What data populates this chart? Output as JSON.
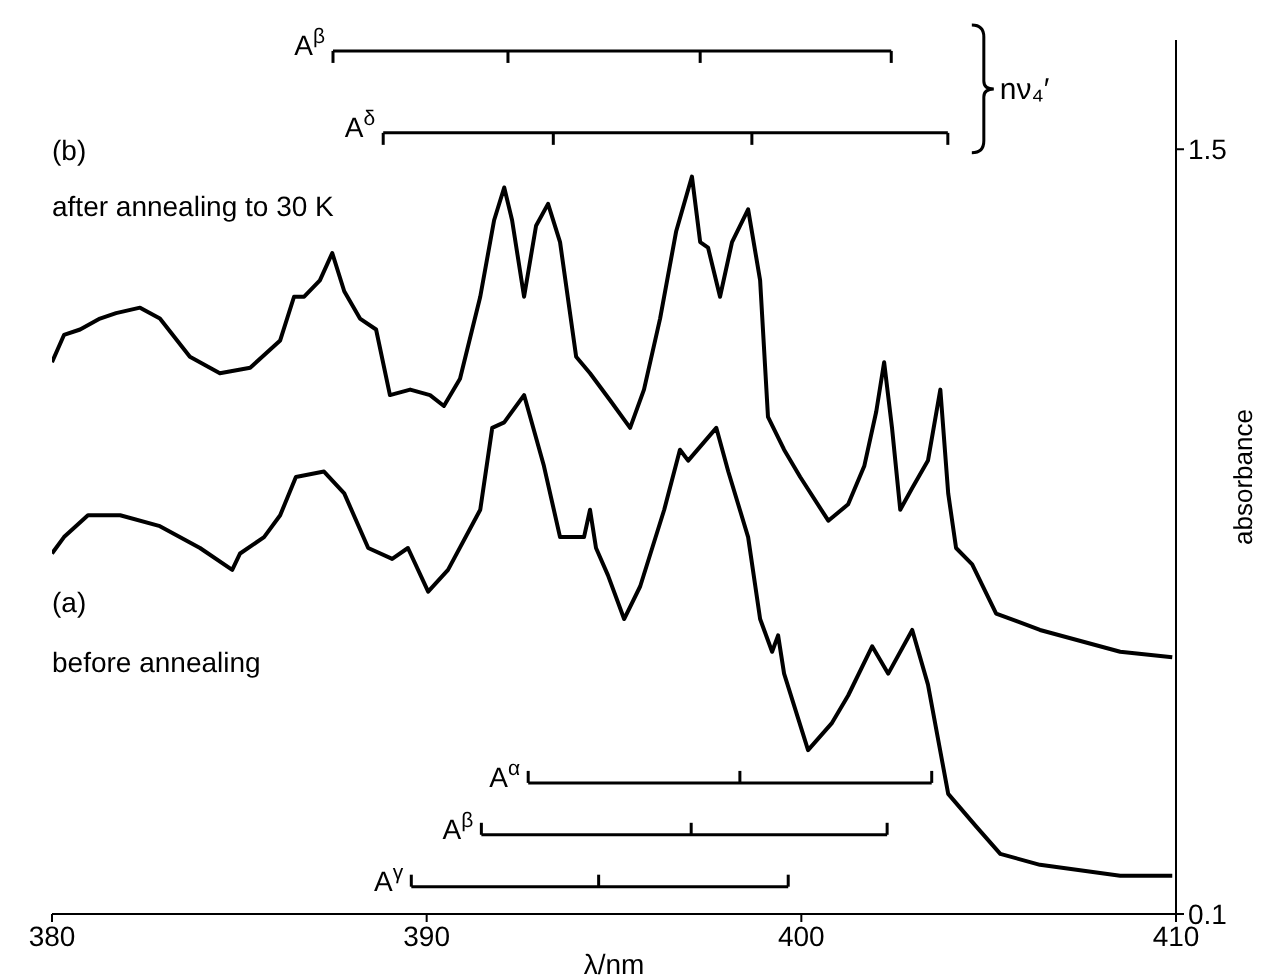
{
  "chart_data": {
    "type": "line",
    "xlabel": "λ/nm",
    "ylabel": "absorbance",
    "xlim": [
      380,
      410
    ],
    "xticks": [
      380,
      390,
      400,
      410
    ],
    "ylim": [
      0.1,
      1.7
    ],
    "yticks": [
      0.1,
      1.5
    ],
    "grid": false,
    "legend": "left",
    "annotations": [
      "(b)",
      "after annealing to 30 K",
      "(a)",
      "before annealing",
      "nν₄′"
    ],
    "series": [
      {
        "color": "#000000",
        "x": [
          380.0,
          380.32,
          380.75,
          381.28,
          381.71,
          382.35,
          382.88,
          383.68,
          384.48,
          385.29,
          386.09,
          386.46,
          386.73,
          387.15,
          387.48,
          387.8,
          388.22,
          388.65,
          389.02,
          389.56,
          390.09,
          390.46,
          390.89,
          391.43,
          391.8,
          392.07,
          392.28,
          392.6,
          392.92,
          393.24,
          393.56,
          393.99,
          394.36,
          394.9,
          395.43,
          395.8,
          396.23,
          396.66,
          397.08,
          397.3,
          397.51,
          397.83,
          398.15,
          398.58,
          398.9,
          399.11,
          399.54,
          399.97,
          400.72,
          401.25,
          401.68,
          402.0,
          402.21,
          402.42,
          402.64,
          402.96,
          403.38,
          403.71,
          403.92,
          404.13,
          404.56,
          405.2,
          406.37,
          408.51,
          409.9
        ],
        "values": [
          1.11,
          1.16,
          1.17,
          1.19,
          1.2,
          1.21,
          1.19,
          1.12,
          1.09,
          1.1,
          1.15,
          1.23,
          1.23,
          1.26,
          1.31,
          1.24,
          1.19,
          1.17,
          1.05,
          1.06,
          1.05,
          1.03,
          1.08,
          1.23,
          1.37,
          1.43,
          1.37,
          1.23,
          1.36,
          1.4,
          1.33,
          1.12,
          1.09,
          1.04,
          0.99,
          1.06,
          1.19,
          1.35,
          1.45,
          1.33,
          1.32,
          1.23,
          1.33,
          1.39,
          1.26,
          1.01,
          0.95,
          0.9,
          0.82,
          0.85,
          0.92,
          1.02,
          1.11,
          0.99,
          0.84,
          0.88,
          0.93,
          1.06,
          0.87,
          0.77,
          0.74,
          0.65,
          0.62,
          0.58,
          0.57
        ]
      },
      {
        "color": "#000000",
        "x": [
          380.0,
          380.32,
          380.96,
          381.82,
          382.88,
          383.95,
          384.81,
          385.02,
          385.66,
          386.09,
          386.51,
          387.26,
          387.8,
          388.44,
          389.08,
          389.5,
          390.04,
          390.57,
          391.43,
          391.75,
          392.07,
          392.6,
          393.13,
          393.56,
          394.2,
          394.36,
          394.52,
          394.84,
          395.27,
          395.7,
          396.34,
          396.76,
          396.98,
          397.73,
          398.05,
          398.58,
          398.9,
          399.22,
          399.38,
          399.54,
          400.18,
          400.82,
          401.25,
          401.89,
          402.32,
          402.96,
          403.38,
          403.92,
          404.67,
          405.31,
          406.37,
          408.51,
          409.9
        ],
        "values": [
          0.76,
          0.79,
          0.83,
          0.83,
          0.81,
          0.77,
          0.73,
          0.76,
          0.79,
          0.83,
          0.9,
          0.91,
          0.87,
          0.77,
          0.75,
          0.77,
          0.69,
          0.73,
          0.84,
          0.99,
          1.0,
          1.05,
          0.92,
          0.79,
          0.79,
          0.84,
          0.77,
          0.72,
          0.64,
          0.7,
          0.84,
          0.95,
          0.93,
          0.99,
          0.91,
          0.79,
          0.64,
          0.58,
          0.61,
          0.54,
          0.4,
          0.45,
          0.5,
          0.59,
          0.54,
          0.62,
          0.52,
          0.32,
          0.26,
          0.21,
          0.19,
          0.17,
          0.17
        ]
      },
      {
        "name": "A$^{β}$",
        "color": "#000000",
        "x": [
          387.5,
          392.17,
          397.3,
          402.4
        ],
        "values": [
          1.68,
          1.68,
          1.68,
          1.68
        ]
      },
      {
        "name": "A$^{δ}$",
        "color": "#000000",
        "x": [
          388.84,
          393.38,
          398.68,
          403.91
        ],
        "values": [
          1.53,
          1.53,
          1.53,
          1.53
        ]
      },
      {
        "name": "A$^{α}$",
        "color": "#000000",
        "x": [
          392.71,
          398.36,
          403.48
        ],
        "values": [
          0.34,
          0.34,
          0.34
        ]
      },
      {
        "name": "A$^{β}$",
        "color": "#000000",
        "x": [
          391.46,
          397.06,
          402.29
        ],
        "values": [
          0.245,
          0.245,
          0.245
        ]
      },
      {
        "name": "A$^{γ}$",
        "color": "#000000",
        "x": [
          389.59,
          394.59,
          399.65
        ],
        "values": [
          0.15,
          0.15,
          0.15
        ]
      }
    ]
  }
}
